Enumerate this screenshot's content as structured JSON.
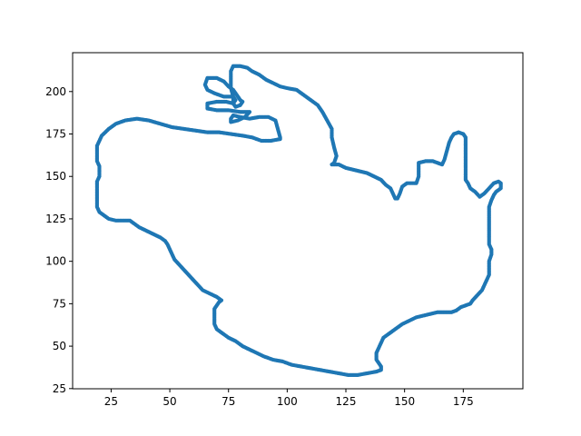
{
  "chart_data": {
    "type": "scatter",
    "title": "",
    "xlabel": "",
    "ylabel": "",
    "xlim": [
      8.6,
      200.4
    ],
    "ylim": [
      24.9,
      222.9
    ],
    "xticks": [
      25,
      50,
      75,
      100,
      125,
      150,
      175
    ],
    "yticks": [
      25,
      50,
      75,
      100,
      125,
      150,
      175,
      200
    ],
    "grid": false,
    "legend": "none",
    "series": [
      {
        "color": "#1f77b4",
        "marker": "dot",
        "closed": true,
        "points": [
          [
            19,
            168
          ],
          [
            21,
            174
          ],
          [
            24,
            178
          ],
          [
            27,
            181
          ],
          [
            31,
            183
          ],
          [
            36,
            184
          ],
          [
            41,
            183
          ],
          [
            46,
            181
          ],
          [
            51,
            179
          ],
          [
            56,
            178
          ],
          [
            61,
            177
          ],
          [
            66,
            176
          ],
          [
            71,
            176
          ],
          [
            76,
            175
          ],
          [
            81,
            174
          ],
          [
            85,
            173
          ],
          [
            89,
            171
          ],
          [
            93,
            171
          ],
          [
            97,
            172
          ],
          [
            97,
            173
          ],
          [
            96,
            178
          ],
          [
            95,
            183
          ],
          [
            92,
            185
          ],
          [
            88,
            185
          ],
          [
            84,
            184
          ],
          [
            80,
            185
          ],
          [
            77,
            186
          ],
          [
            76,
            184
          ],
          [
            76,
            182
          ],
          [
            79,
            183
          ],
          [
            82,
            185
          ],
          [
            84,
            188
          ],
          [
            80,
            188
          ],
          [
            75,
            189
          ],
          [
            70,
            189
          ],
          [
            66,
            190
          ],
          [
            66,
            193
          ],
          [
            70,
            194
          ],
          [
            74,
            194
          ],
          [
            77,
            193
          ],
          [
            78,
            195
          ],
          [
            77,
            197
          ],
          [
            73,
            197
          ],
          [
            69,
            199
          ],
          [
            66,
            201
          ],
          [
            65,
            204
          ],
          [
            66,
            208
          ],
          [
            70,
            208
          ],
          [
            73,
            206
          ],
          [
            75,
            203
          ],
          [
            77,
            201
          ],
          [
            78,
            199
          ],
          [
            79,
            197
          ],
          [
            80,
            195
          ],
          [
            81,
            194
          ],
          [
            80,
            192
          ],
          [
            78,
            191
          ],
          [
            77,
            193
          ],
          [
            77,
            197
          ],
          [
            76,
            202
          ],
          [
            76,
            207
          ],
          [
            76,
            212
          ],
          [
            77,
            215
          ],
          [
            80,
            215
          ],
          [
            83,
            214
          ],
          [
            85,
            212
          ],
          [
            88,
            210
          ],
          [
            91,
            207
          ],
          [
            94,
            205
          ],
          [
            97,
            203
          ],
          [
            100,
            202
          ],
          [
            104,
            201
          ],
          [
            107,
            198
          ],
          [
            110,
            195
          ],
          [
            113,
            192
          ],
          [
            115,
            188
          ],
          [
            117,
            183
          ],
          [
            119,
            178
          ],
          [
            119,
            173
          ],
          [
            120,
            167
          ],
          [
            121,
            162
          ],
          [
            120,
            158
          ],
          [
            119,
            157
          ],
          [
            122,
            157
          ],
          [
            125,
            155
          ],
          [
            128,
            154
          ],
          [
            131,
            153
          ],
          [
            134,
            152
          ],
          [
            137,
            150
          ],
          [
            140,
            148
          ],
          [
            142,
            145
          ],
          [
            144,
            143
          ],
          [
            145,
            140
          ],
          [
            146,
            137
          ],
          [
            147,
            137
          ],
          [
            148,
            140
          ],
          [
            149,
            144
          ],
          [
            151,
            146
          ],
          [
            154,
            146
          ],
          [
            155,
            146
          ],
          [
            156,
            150
          ],
          [
            156,
            154
          ],
          [
            156,
            158
          ],
          [
            159,
            159
          ],
          [
            162,
            159
          ],
          [
            164,
            158
          ],
          [
            166,
            157
          ],
          [
            167,
            160
          ],
          [
            168,
            165
          ],
          [
            169,
            170
          ],
          [
            170,
            173
          ],
          [
            171,
            175
          ],
          [
            173,
            176
          ],
          [
            175,
            175
          ],
          [
            176,
            173
          ],
          [
            176,
            167
          ],
          [
            176,
            161
          ],
          [
            176,
            155
          ],
          [
            176,
            150
          ],
          [
            176,
            148
          ],
          [
            177,
            146
          ],
          [
            178,
            143
          ],
          [
            180,
            141
          ],
          [
            182,
            138
          ],
          [
            184,
            140
          ],
          [
            186,
            143
          ],
          [
            188,
            146
          ],
          [
            190,
            147
          ],
          [
            191,
            146
          ],
          [
            191,
            143
          ],
          [
            189,
            141
          ],
          [
            188,
            139
          ],
          [
            187,
            136
          ],
          [
            186,
            132
          ],
          [
            186,
            126
          ],
          [
            186,
            120
          ],
          [
            186,
            114
          ],
          [
            186,
            110
          ],
          [
            187,
            107
          ],
          [
            187,
            104
          ],
          [
            186,
            100
          ],
          [
            186,
            96
          ],
          [
            186,
            92
          ],
          [
            185,
            89
          ],
          [
            184,
            86
          ],
          [
            183,
            83
          ],
          [
            181,
            80
          ],
          [
            179,
            77
          ],
          [
            178,
            75
          ],
          [
            176,
            74
          ],
          [
            174,
            73
          ],
          [
            172,
            71
          ],
          [
            170,
            70
          ],
          [
            167,
            70
          ],
          [
            164,
            70
          ],
          [
            161,
            69
          ],
          [
            158,
            68
          ],
          [
            155,
            67
          ],
          [
            152,
            65
          ],
          [
            149,
            63
          ],
          [
            147,
            61
          ],
          [
            145,
            59
          ],
          [
            143,
            57
          ],
          [
            141,
            55
          ],
          [
            140,
            52
          ],
          [
            139,
            49
          ],
          [
            138,
            46
          ],
          [
            138,
            44
          ],
          [
            138,
            42
          ],
          [
            139,
            40
          ],
          [
            140,
            38
          ],
          [
            140,
            36
          ],
          [
            138,
            35
          ],
          [
            134,
            34
          ],
          [
            130,
            33
          ],
          [
            126,
            33
          ],
          [
            122,
            34
          ],
          [
            118,
            35
          ],
          [
            114,
            36
          ],
          [
            110,
            37
          ],
          [
            106,
            38
          ],
          [
            102,
            39
          ],
          [
            98,
            41
          ],
          [
            94,
            42
          ],
          [
            90,
            44
          ],
          [
            87,
            46
          ],
          [
            84,
            48
          ],
          [
            81,
            50
          ],
          [
            78,
            53
          ],
          [
            75,
            55
          ],
          [
            72,
            58
          ],
          [
            70,
            60
          ],
          [
            69,
            63
          ],
          [
            69,
            66
          ],
          [
            69,
            69
          ],
          [
            69,
            72
          ],
          [
            70,
            74
          ],
          [
            71,
            76
          ],
          [
            72,
            77
          ],
          [
            70,
            79
          ],
          [
            67,
            81
          ],
          [
            64,
            83
          ],
          [
            62,
            86
          ],
          [
            60,
            89
          ],
          [
            58,
            92
          ],
          [
            56,
            95
          ],
          [
            54,
            98
          ],
          [
            52,
            101
          ],
          [
            51,
            104
          ],
          [
            50,
            107
          ],
          [
            49,
            110
          ],
          [
            48,
            112
          ],
          [
            46,
            114
          ],
          [
            43,
            116
          ],
          [
            40,
            118
          ],
          [
            37,
            120
          ],
          [
            35,
            122
          ],
          [
            33,
            124
          ],
          [
            30,
            124
          ],
          [
            27,
            124
          ],
          [
            24,
            125
          ],
          [
            22,
            127
          ],
          [
            20,
            129
          ],
          [
            19,
            132
          ],
          [
            19,
            136
          ],
          [
            19,
            140
          ],
          [
            19,
            144
          ],
          [
            19,
            147
          ],
          [
            20,
            150
          ],
          [
            20,
            153
          ],
          [
            20,
            156
          ],
          [
            19,
            159
          ],
          [
            19,
            163
          ]
        ]
      }
    ]
  }
}
